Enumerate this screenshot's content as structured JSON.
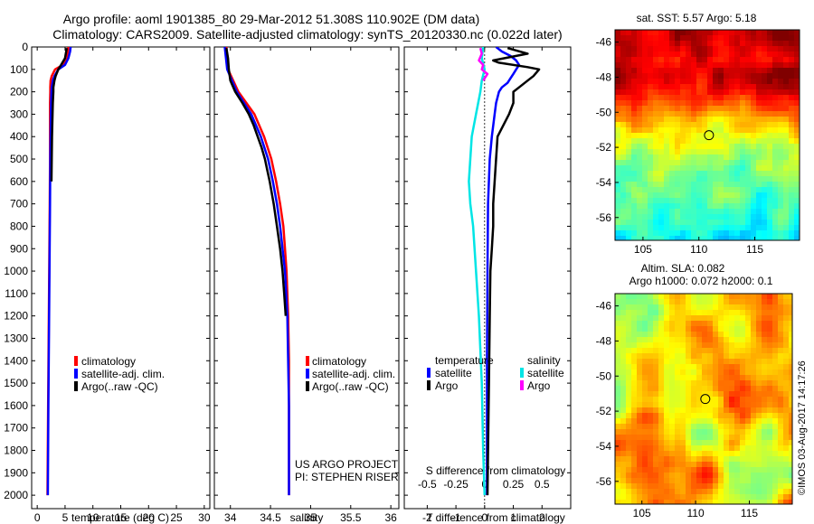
{
  "title": {
    "line1": "Argo profile: aoml 1901385_80 29-Mar-2012 51.308S 110.902E (DM data)",
    "line2": "Climatology: CARS2009. Satellite-adjusted climatology: synTS_20120330.nc (0.022d later)"
  },
  "credits": {
    "project": "US ARGO PROJECT",
    "pi": "PI: STEPHEN RISER",
    "stamp": "©IMOS 03-Aug-2017 14:17:26"
  },
  "legend_profile": {
    "items": [
      {
        "label": "climatology",
        "color": "#ff0000"
      },
      {
        "label": "satellite-adj. clim.",
        "color": "#0000ff"
      },
      {
        "label": "Argo(..raw -QC)",
        "color": "#000000"
      }
    ]
  },
  "legend_diff": {
    "temperature_header": "temperature",
    "salinity_header": "salinity",
    "temperature_items": [
      {
        "label": "satellite",
        "color": "#0000ff"
      },
      {
        "label": "Argo",
        "color": "#000000"
      }
    ],
    "salinity_items": [
      {
        "label": "satellite",
        "color": "#00e5e5"
      },
      {
        "label": "Argo",
        "color": "#ff00ff"
      }
    ]
  },
  "map_sst": {
    "title": "sat. SST: 5.57 Argo: 5.18",
    "xticks": [
      "105",
      "110",
      "115"
    ],
    "yticks": [
      "-46",
      "-48",
      "-50",
      "-52",
      "-54",
      "-56"
    ],
    "float_lon": 110.902,
    "float_lat": -51.308
  },
  "map_sla": {
    "title_line1": "Altim. SLA: 0.082",
    "title_line2": "Argo h1000: 0.072 h2000: 0.1",
    "xticks": [
      "105",
      "110",
      "115"
    ],
    "yticks": [
      "-46",
      "-48",
      "-50",
      "-52",
      "-54",
      "-56"
    ],
    "float_lon": 110.902,
    "float_lat": -51.308
  },
  "chart_data": [
    {
      "type": "line",
      "id": "temperature",
      "xlabel": "temperature (deg C)",
      "ylim": [
        2060,
        0
      ],
      "xlim": [
        -1,
        31
      ],
      "xticks": [
        0,
        5,
        10,
        15,
        20,
        25,
        30
      ],
      "yticks": [
        0,
        100,
        200,
        300,
        400,
        500,
        600,
        700,
        800,
        900,
        1000,
        1100,
        1200,
        1300,
        1400,
        1500,
        1600,
        1700,
        1800,
        1900,
        2000
      ],
      "series": [
        {
          "name": "climatology",
          "color": "#ff0000",
          "pressure": [
            0,
            20,
            50,
            80,
            100,
            130,
            150,
            180,
            200,
            250,
            300,
            400,
            500,
            700,
            1000,
            1300,
            1600,
            2000
          ],
          "values": [
            5.6,
            5.5,
            5.4,
            4.6,
            3.2,
            2.6,
            2.4,
            2.35,
            2.35,
            2.3,
            2.3,
            2.3,
            2.3,
            2.25,
            2.15,
            2.05,
            1.95,
            1.85
          ]
        },
        {
          "name": "satellite-adj. clim.",
          "color": "#0000ff",
          "pressure": [
            0,
            20,
            50,
            80,
            100,
            130,
            150,
            180,
            200,
            250,
            300,
            400,
            500,
            700,
            1000,
            1300,
            1600,
            2000
          ],
          "values": [
            6.0,
            5.9,
            5.6,
            5.0,
            3.8,
            3.1,
            2.8,
            2.6,
            2.55,
            2.5,
            2.45,
            2.4,
            2.35,
            2.3,
            2.2,
            2.1,
            2.0,
            1.9
          ]
        },
        {
          "name": "Argo(..raw -QC)",
          "color": "#000000",
          "pressure": [
            5,
            20,
            50,
            80,
            100,
            130,
            150,
            180,
            200,
            250,
            300,
            350,
            400,
            500,
            600
          ],
          "values": [
            5.3,
            5.2,
            5.0,
            4.3,
            3.8,
            3.3,
            3.1,
            2.9,
            2.9,
            2.8,
            2.75,
            2.7,
            2.65,
            2.6,
            2.55
          ]
        }
      ]
    },
    {
      "type": "line",
      "id": "salinity",
      "xlabel": "salinity",
      "ylim": [
        2060,
        0
      ],
      "xlim": [
        33.8,
        36.1
      ],
      "xticks": [
        34,
        34.5,
        35,
        35.5,
        36
      ],
      "series": [
        {
          "name": "climatology",
          "color": "#ff0000",
          "pressure": [
            0,
            100,
            200,
            300,
            400,
            500,
            600,
            700,
            800,
            900,
            1000,
            1200,
            1400,
            1600,
            2000
          ],
          "values": [
            33.95,
            33.97,
            34.1,
            34.3,
            34.42,
            34.51,
            34.57,
            34.62,
            34.66,
            34.68,
            34.7,
            34.72,
            34.73,
            34.73,
            34.73
          ]
        },
        {
          "name": "satellite-adj. clim.",
          "color": "#0000ff",
          "pressure": [
            0,
            100,
            200,
            300,
            400,
            500,
            600,
            700,
            800,
            900,
            1000,
            1200,
            1400,
            1600,
            2000
          ],
          "values": [
            33.93,
            33.96,
            34.08,
            34.26,
            34.38,
            34.47,
            34.53,
            34.58,
            34.62,
            34.65,
            34.68,
            34.71,
            34.72,
            34.73,
            34.73
          ]
        },
        {
          "name": "Argo(..raw -QC)",
          "color": "#000000",
          "pressure": [
            5,
            50,
            100,
            150,
            200,
            250,
            300,
            350,
            400,
            450,
            500,
            550,
            600,
            700,
            800,
            900,
            1000,
            1100,
            1200
          ],
          "values": [
            33.95,
            33.97,
            33.98,
            34.0,
            34.06,
            34.15,
            34.23,
            34.29,
            34.34,
            34.39,
            34.43,
            34.46,
            34.49,
            34.54,
            34.58,
            34.62,
            34.65,
            34.67,
            34.69
          ]
        }
      ]
    },
    {
      "type": "line",
      "id": "difference",
      "xlabel": "T difference from climatology",
      "top_label": "S difference from climatology",
      "ylim": [
        2060,
        0
      ],
      "xlim": [
        -2.8,
        3.0
      ],
      "xticks": [
        -2,
        -1,
        0,
        1,
        2
      ],
      "top_xticks": [
        "-0.5",
        "-0.25",
        "0",
        "0.25",
        "0.5"
      ],
      "series": [
        {
          "name": "temperature satellite",
          "color": "#0000ff",
          "pressure": [
            0,
            20,
            40,
            60,
            80,
            100,
            120,
            140,
            160,
            180,
            200,
            250,
            300,
            400,
            500,
            700,
            1000,
            1400,
            1800,
            2000
          ],
          "values": [
            0.4,
            0.6,
            0.9,
            1.1,
            1.2,
            1.1,
            1.0,
            0.9,
            0.8,
            0.6,
            0.5,
            0.4,
            0.35,
            0.25,
            0.18,
            0.12,
            0.1,
            0.08,
            0.08,
            0.08
          ]
        },
        {
          "name": "temperature Argo",
          "color": "#000000",
          "pressure": [
            5,
            30,
            60,
            70,
            90,
            100,
            130,
            150,
            180,
            200,
            250,
            300,
            400,
            500,
            600,
            700,
            800,
            900,
            1000,
            1200,
            1500,
            1800,
            2000
          ],
          "values": [
            0.8,
            1.5,
            0.3,
            0.5,
            1.5,
            1.9,
            1.7,
            1.5,
            1.2,
            1.0,
            1.0,
            0.85,
            0.45,
            0.4,
            0.35,
            0.3,
            0.3,
            0.25,
            0.2,
            0.18,
            0.15,
            0.12,
            0.1
          ]
        },
        {
          "name": "salinity satellite",
          "color": "#00e5e5",
          "pressure": [
            0,
            50,
            100,
            150,
            200,
            300,
            400,
            500,
            600,
            700,
            800,
            1000,
            1200,
            1500,
            1800,
            2000
          ],
          "values": [
            -0.05,
            -0.1,
            0.0,
            -0.1,
            -0.15,
            -0.3,
            -0.45,
            -0.5,
            -0.55,
            -0.5,
            -0.4,
            -0.3,
            -0.2,
            -0.1,
            -0.05,
            0.0
          ]
        },
        {
          "name": "salinity Argo",
          "color": "#ff00ff",
          "pressure": [
            5,
            30,
            60,
            80,
            100,
            120,
            150
          ],
          "values": [
            -0.15,
            -0.1,
            -0.2,
            -0.05,
            -0.1,
            0.1,
            -0.05
          ]
        }
      ]
    }
  ]
}
